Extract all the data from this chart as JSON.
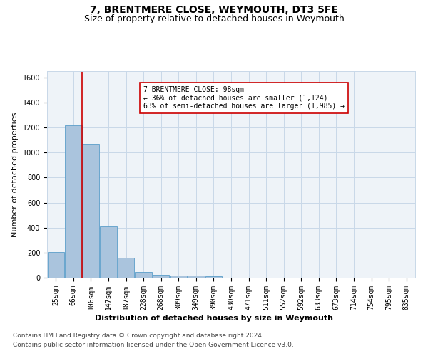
{
  "title": "7, BRENTMERE CLOSE, WEYMOUTH, DT3 5FE",
  "subtitle": "Size of property relative to detached houses in Weymouth",
  "xlabel": "Distribution of detached houses by size in Weymouth",
  "ylabel": "Number of detached properties",
  "categories": [
    "25sqm",
    "66sqm",
    "106sqm",
    "147sqm",
    "187sqm",
    "228sqm",
    "268sqm",
    "309sqm",
    "349sqm",
    "390sqm",
    "430sqm",
    "471sqm",
    "511sqm",
    "552sqm",
    "592sqm",
    "633sqm",
    "673sqm",
    "714sqm",
    "754sqm",
    "795sqm",
    "835sqm"
  ],
  "values": [
    203,
    1220,
    1070,
    410,
    160,
    45,
    25,
    15,
    15,
    10,
    0,
    0,
    0,
    0,
    0,
    0,
    0,
    0,
    0,
    0,
    0
  ],
  "bar_color": "#aac4dd",
  "bar_edge_color": "#5a9ec9",
  "grid_color": "#c8d8e8",
  "background_color": "#eef3f8",
  "vline_x": 1.5,
  "vline_color": "#cc0000",
  "annotation_text": "7 BRENTMERE CLOSE: 98sqm\n← 36% of detached houses are smaller (1,124)\n63% of semi-detached houses are larger (1,985) →",
  "annotation_box_color": "#cc0000",
  "ylim": [
    0,
    1650
  ],
  "yticks": [
    0,
    200,
    400,
    600,
    800,
    1000,
    1200,
    1400,
    1600
  ],
  "footer_line1": "Contains HM Land Registry data © Crown copyright and database right 2024.",
  "footer_line2": "Contains public sector information licensed under the Open Government Licence v3.0.",
  "title_fontsize": 10,
  "subtitle_fontsize": 9,
  "label_fontsize": 8,
  "tick_fontsize": 7,
  "annotation_fontsize": 7,
  "footer_fontsize": 6.5
}
